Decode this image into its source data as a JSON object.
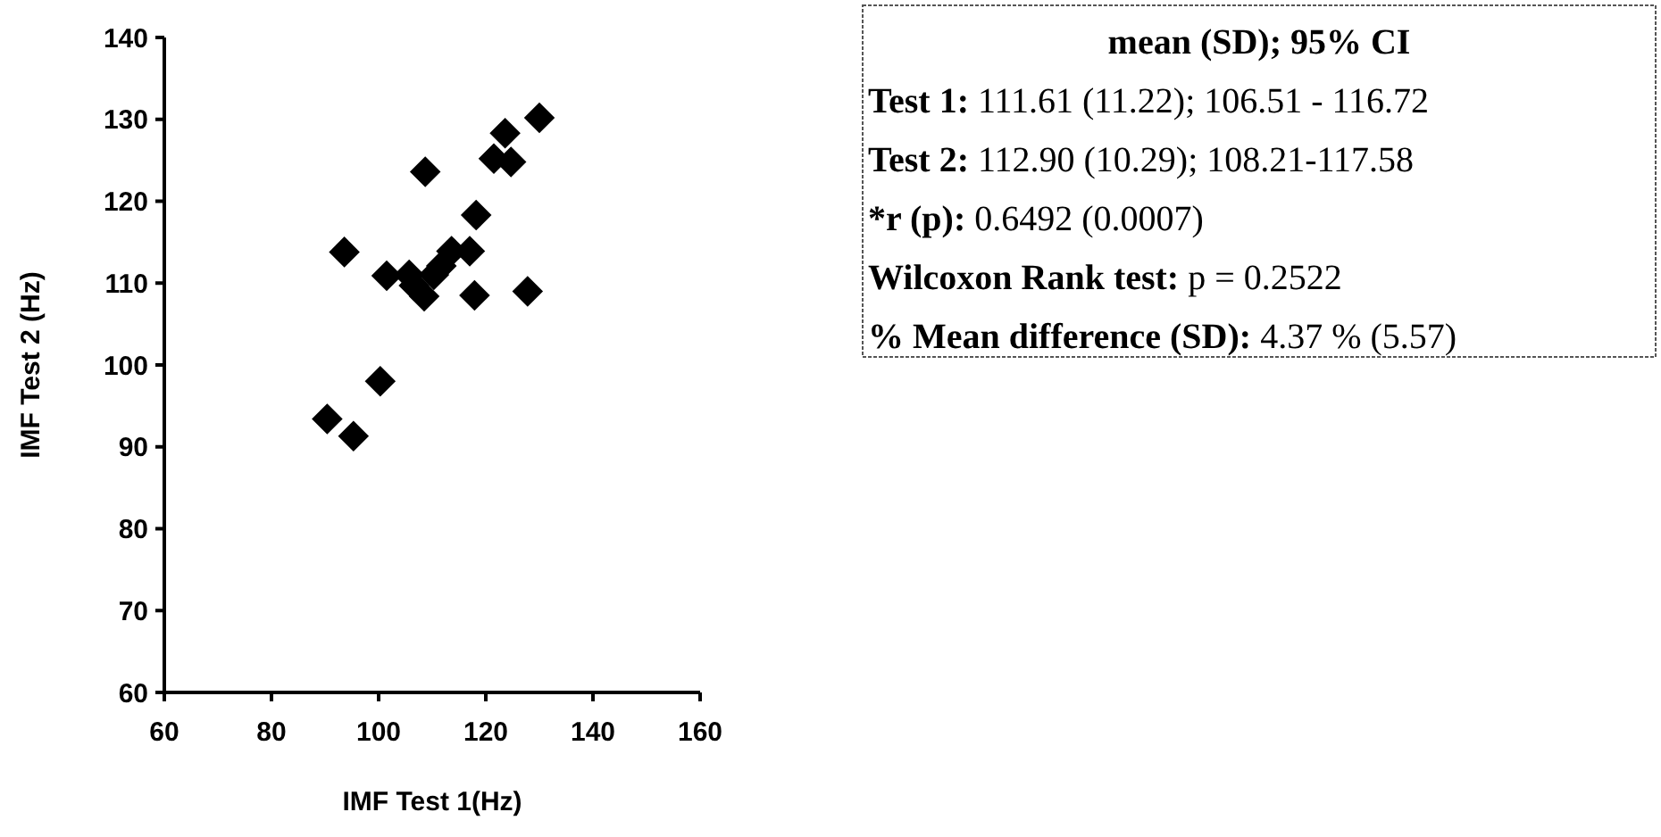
{
  "chart_data": {
    "type": "scatter",
    "xlabel": "IMF Test 1(Hz)",
    "ylabel": "IMF Test 2 (Hz)",
    "x": [
      90.4,
      95.3,
      100.3,
      93.6,
      101.5,
      105.7,
      106.6,
      108.5,
      108.7,
      110.3,
      111.7,
      113.6,
      117.0,
      117.9,
      118.2,
      121.5,
      123.6,
      124.7,
      127.8,
      130.0
    ],
    "values": [
      93.4,
      91.3,
      98.0,
      113.8,
      110.9,
      111.0,
      109.7,
      108.4,
      123.6,
      111.0,
      112.1,
      113.9,
      113.9,
      108.5,
      118.3,
      125.2,
      128.3,
      124.8,
      109.0,
      130.2
    ],
    "color": "#000000",
    "marker": "diamond",
    "xlim": [
      60,
      160
    ],
    "xticks": [
      60,
      80,
      100,
      120,
      140,
      160
    ],
    "ylim": [
      60,
      140
    ],
    "yticks": [
      60,
      70,
      80,
      90,
      100,
      110,
      120,
      130,
      140
    ],
    "annotations": [
      "mean (SD); 95% CI",
      "Test 1: 111.61 (11.22); 106.51 - 116.72",
      "Test 2: 112.90 (10.29); 108.21-117.58",
      "*r (p): 0.6492 (0.0007)",
      "Wilcoxon Rank test: p = 0.2522",
      "% Mean difference (SD): 4.37 % (5.57)"
    ]
  }
}
